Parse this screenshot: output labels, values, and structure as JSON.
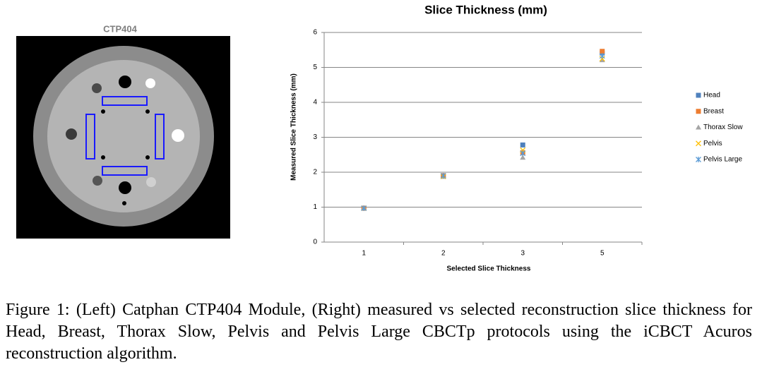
{
  "image": {
    "label": "CTP404"
  },
  "chart_data": {
    "type": "scatter",
    "title": "Slice Thickness (mm)",
    "xlabel": "Selected Slice Thickness",
    "ylabel": "Measured Slice Thickness (mm)",
    "categories": [
      "1",
      "2",
      "3",
      "5"
    ],
    "ylim": [
      0,
      6
    ],
    "yticks": [
      0,
      1,
      2,
      3,
      4,
      5,
      6
    ],
    "grid": true,
    "legend": "right",
    "series": [
      {
        "name": "Head",
        "color": "#4f81bd",
        "marker": "square",
        "values": [
          0.97,
          1.9,
          2.78,
          5.41
        ]
      },
      {
        "name": "Breast",
        "color": "#ed7d31",
        "marker": "square",
        "values": [
          0.97,
          1.9,
          2.56,
          5.46
        ]
      },
      {
        "name": "Thorax Slow",
        "color": "#a5a5a5",
        "marker": "triangle",
        "values": [
          0.97,
          1.87,
          2.42,
          5.21
        ]
      },
      {
        "name": "Pelvis",
        "color": "#ffc000",
        "marker": "x",
        "values": [
          0.97,
          1.88,
          2.63,
          5.25
        ]
      },
      {
        "name": "Pelvis Large",
        "color": "#5b9bd5",
        "marker": "star",
        "values": [
          0.97,
          1.9,
          2.54,
          5.33
        ]
      }
    ]
  },
  "caption": "Figure 1: (Left) Catphan CTP404 Module, (Right) measured vs selected reconstruction slice thickness for Head, Breast, Thorax Slow, Pelvis and Pelvis Large CBCTp protocols using the iCBCT Acuros reconstruction algorithm."
}
